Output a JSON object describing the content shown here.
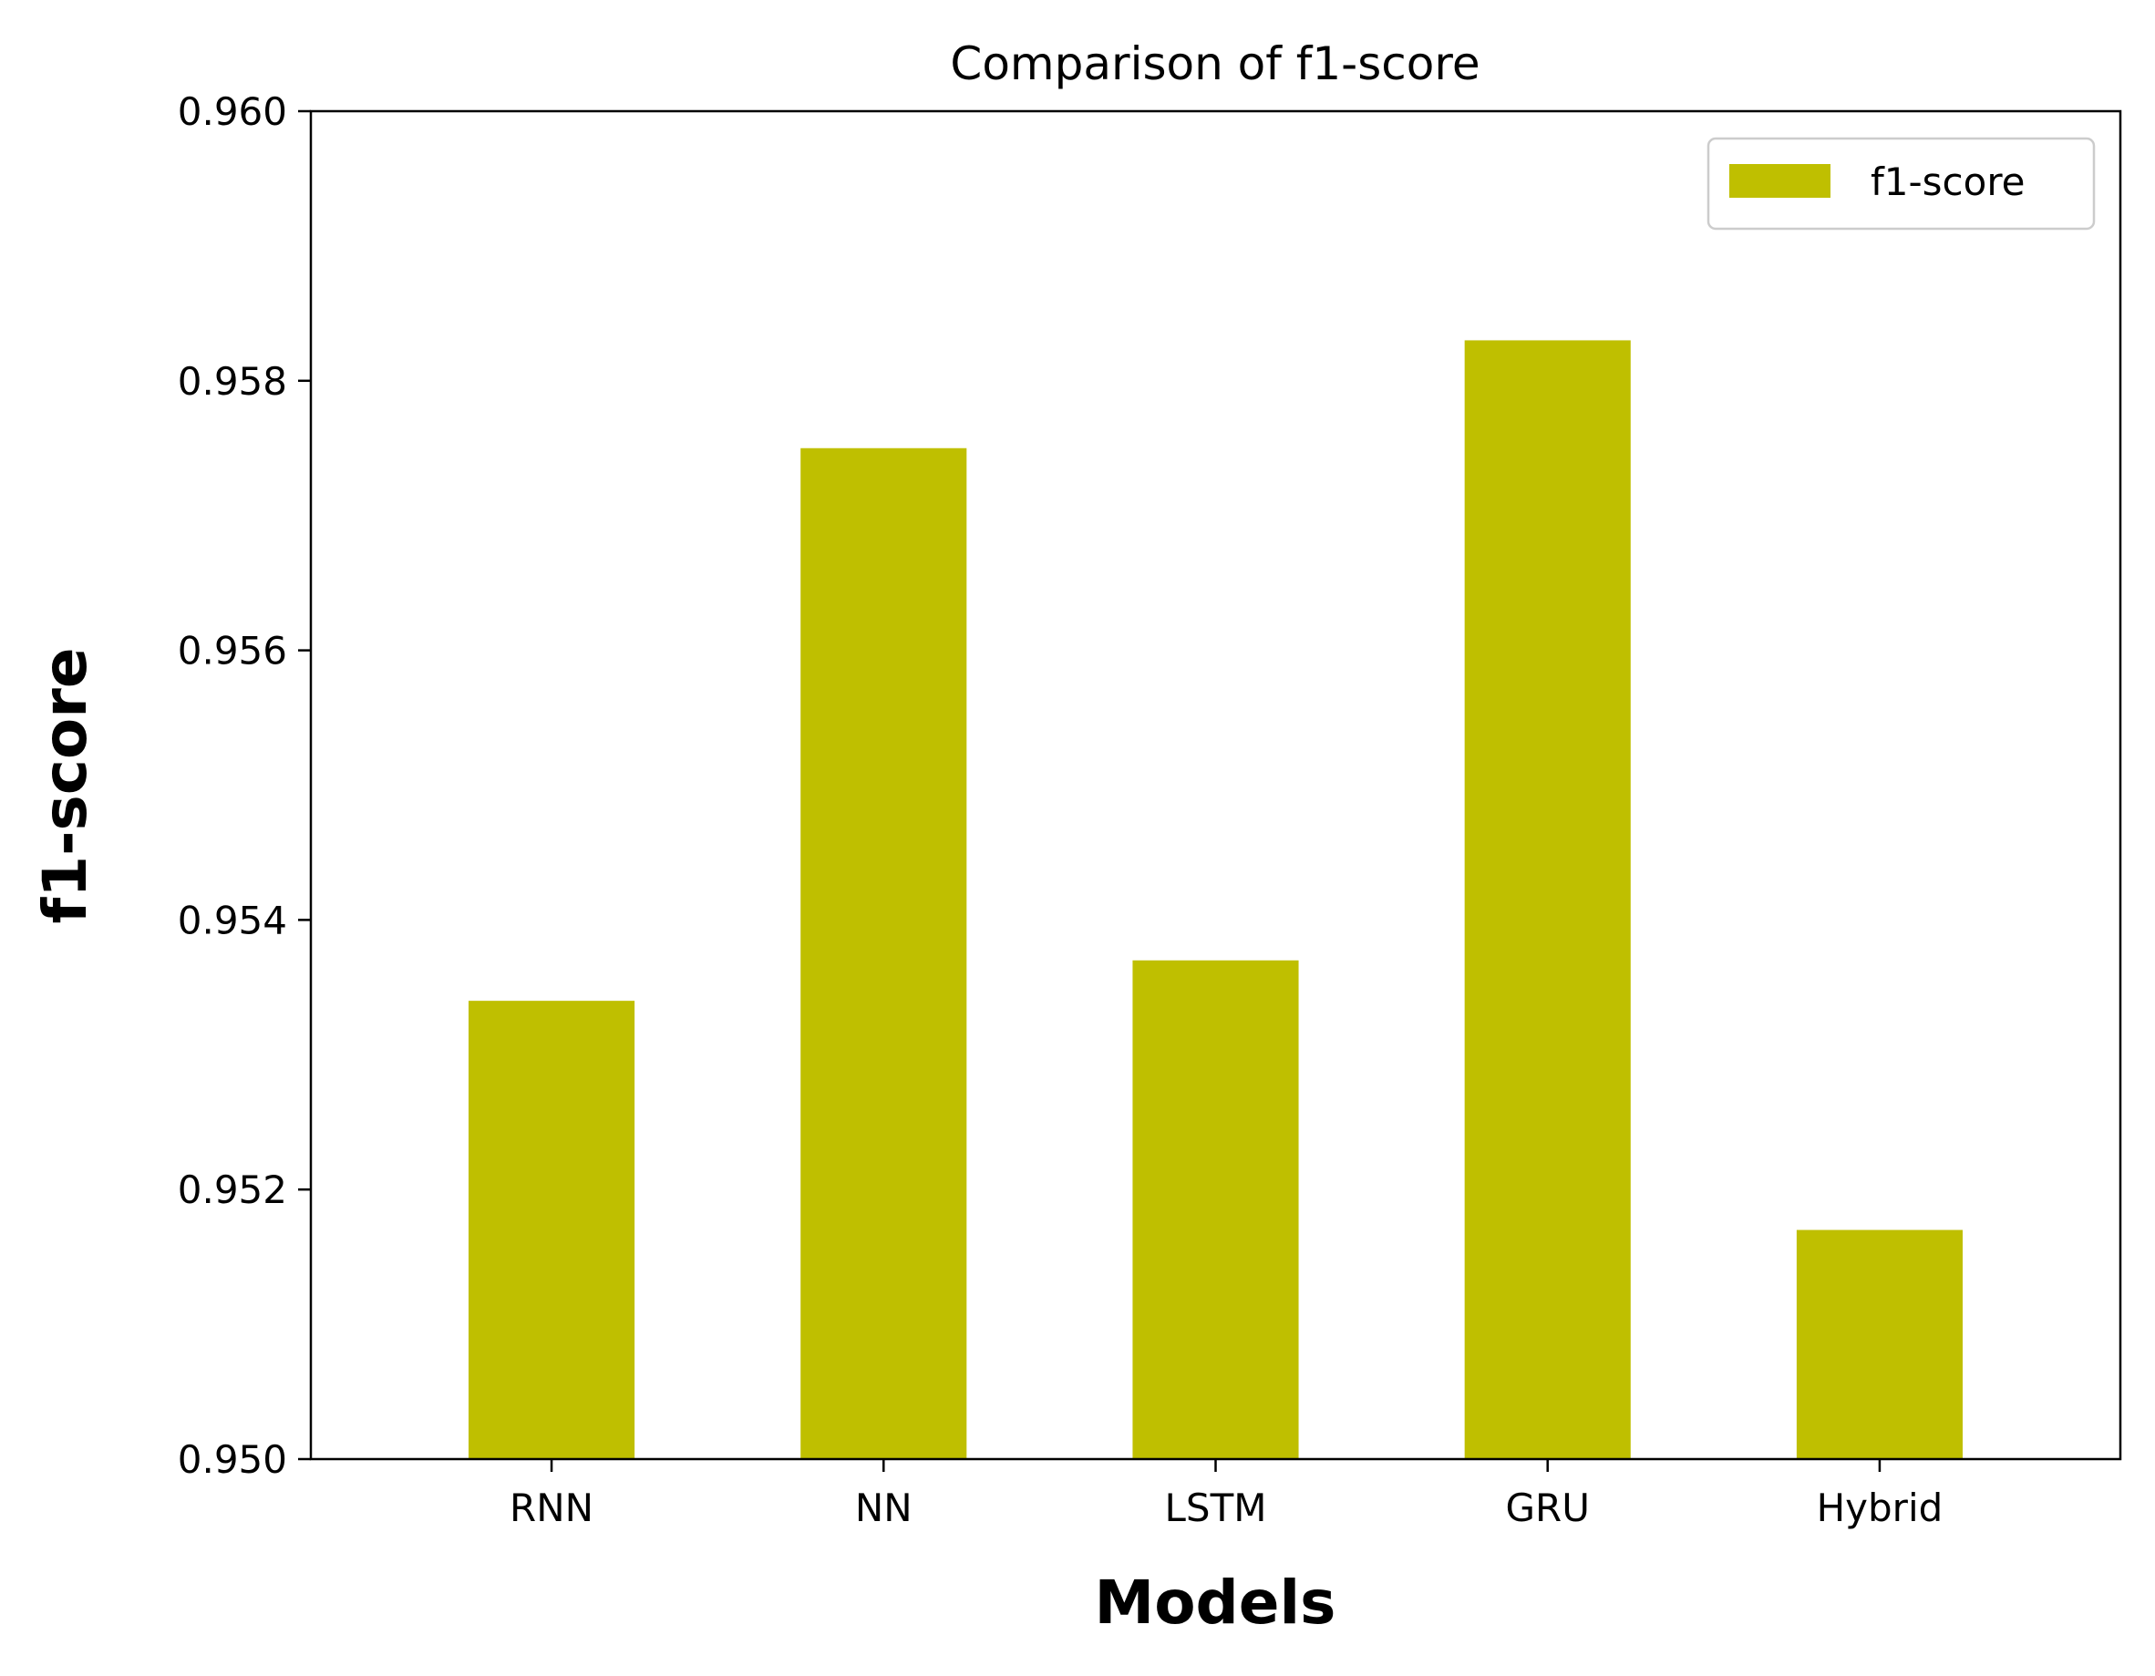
{
  "chart_data": {
    "type": "bar",
    "title": "Comparison of f1-score",
    "xlabel": "Models",
    "ylabel": "f1-score",
    "categories": [
      "RNN",
      "NN",
      "LSTM",
      "GRU",
      "Hybrid"
    ],
    "series": [
      {
        "name": "f1-score",
        "values": [
          0.9534,
          0.9575,
          0.9537,
          0.9583,
          0.9517
        ],
        "color": "#bfbf00"
      }
    ],
    "ylim": [
      0.95,
      0.96
    ],
    "yticks": [
      "0.950",
      "0.952",
      "0.954",
      "0.956",
      "0.958",
      "0.960"
    ],
    "grid": false,
    "legend_position": "top-right"
  }
}
